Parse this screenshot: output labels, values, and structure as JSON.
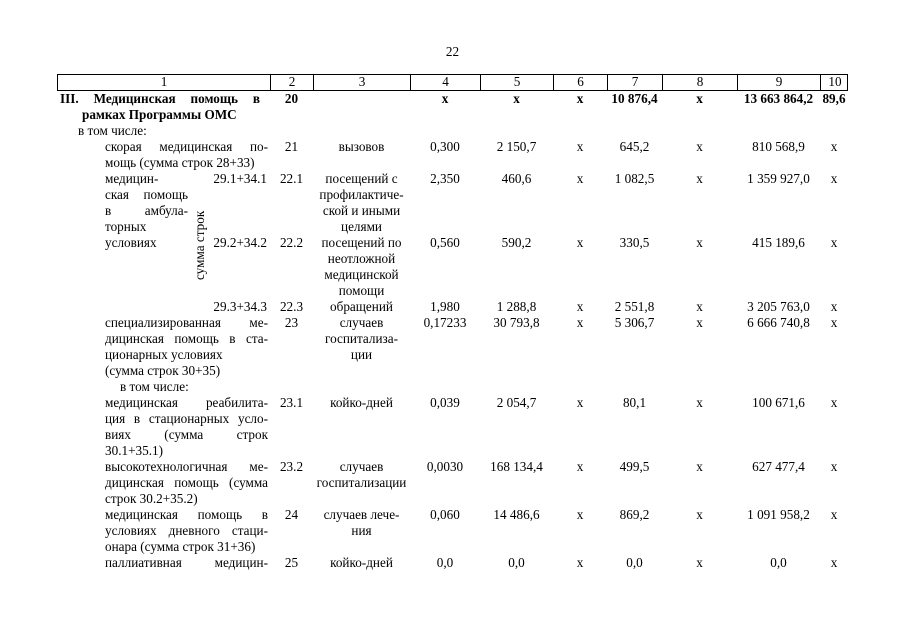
{
  "page_number": "22",
  "header_cols": [
    "1",
    "2",
    "3",
    "4",
    "5",
    "6",
    "7",
    "8",
    "9",
    "10"
  ],
  "rows": {
    "r20": {
      "name1": "III. Медицинская помощь в",
      "name2": "рамках Программы ОМС",
      "num": "20",
      "c4": "х",
      "c5": "х",
      "c6": "х",
      "c7": "10 876,4",
      "c8": "х",
      "c9": "13 663 864,2",
      "c10": "89,6"
    },
    "incl1": "в том числе:",
    "r21": {
      "name1": "скорая медицинская по-",
      "name2": "мощь (сумма строк 28+33)",
      "num": "21",
      "unit": "вызовов",
      "c4": "0,300",
      "c5": "2 150,7",
      "c6": "х",
      "c7": "645,2",
      "c8": "х",
      "c9": "810 568,9",
      "c10": "х"
    },
    "amb": {
      "left1": "медицин-",
      "left2": "ская помощь",
      "left3": "в амбула-",
      "left4": "торных",
      "left5": "условиях",
      "rot": "сумма строк",
      "r221": {
        "sum": "29.1+34.1",
        "num": "22.1",
        "unit1": "посещений с",
        "unit2": "профилактиче-",
        "unit3": "ской и иными",
        "unit4": "целями",
        "c4": "2,350",
        "c5": "460,6",
        "c6": "х",
        "c7": "1 082,5",
        "c8": "х",
        "c9": "1 359 927,0",
        "c10": "х"
      },
      "r222": {
        "sum": "29.2+34.2",
        "num": "22.2",
        "unit1": "посещений по",
        "unit2": "неотложной",
        "unit3": "медицинской",
        "unit4": "помощи",
        "c4": "0,560",
        "c5": "590,2",
        "c6": "х",
        "c7": "330,5",
        "c8": "х",
        "c9": "415 189,6",
        "c10": "х"
      },
      "r223": {
        "sum": "29.3+34.3",
        "num": "22.3",
        "unit": "обращений",
        "c4": "1,980",
        "c5": "1 288,8",
        "c6": "х",
        "c7": "2 551,8",
        "c8": "х",
        "c9": "3 205 763,0",
        "c10": "х"
      }
    },
    "r23": {
      "name1": "специализированная ме-",
      "name2": "дицинская помощь в ста-",
      "name3": "ционарных условиях",
      "name4": "(сумма строк 30+35)",
      "num": "23",
      "unit1": "случаев",
      "unit2": "госпитализа-",
      "unit3": "ции",
      "c4": "0,17233",
      "c5": "30 793,8",
      "c6": "х",
      "c7": "5 306,7",
      "c8": "х",
      "c9": "6 666 740,8",
      "c10": "х"
    },
    "incl2": "в том числе:",
    "r231": {
      "name1": "медицинская реабилита-",
      "name2": "ция в стационарных усло-",
      "name3": "виях (сумма строк",
      "name4": "30.1+35.1)",
      "num": "23.1",
      "unit": "койко-дней",
      "c4": "0,039",
      "c5": "2 054,7",
      "c6": "х",
      "c7": "80,1",
      "c8": "х",
      "c9": "100 671,6",
      "c10": "х"
    },
    "r232": {
      "name1": "высокотехнологичная ме-",
      "name2": "дицинская помощь (сумма",
      "name3": "строк 30.2+35.2)",
      "num": "23.2",
      "unit1": "случаев",
      "unit2": "госпитализации",
      "c4": "0,0030",
      "c5": "168 134,4",
      "c6": "х",
      "c7": "499,5",
      "c8": "х",
      "c9": "627 477,4",
      "c10": "х"
    },
    "r24": {
      "name1": "медицинская помощь в",
      "name2": "условиях дневного стаци-",
      "name3": "онара (сумма строк 31+36)",
      "num": "24",
      "unit1": "случаев лече-",
      "unit2": "ния",
      "c4": "0,060",
      "c5": "14 486,6",
      "c6": "х",
      "c7": "869,2",
      "c8": "х",
      "c9": "1 091 958,2",
      "c10": "х"
    },
    "r25": {
      "name1": "паллиативная медицин-",
      "num": "25",
      "unit": "койко-дней",
      "c4": "0,0",
      "c5": "0,0",
      "c6": "х",
      "c7": "0,0",
      "c8": "х",
      "c9": "0,0",
      "c10": "х"
    }
  }
}
